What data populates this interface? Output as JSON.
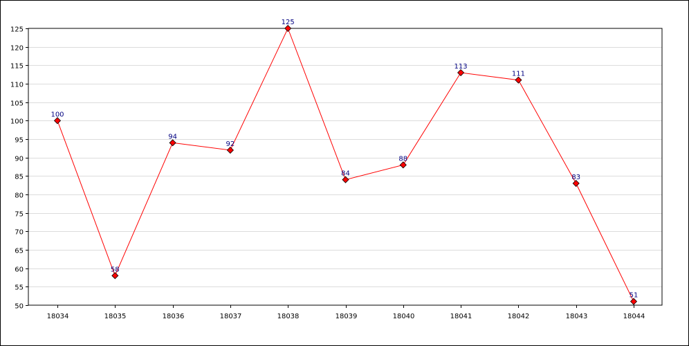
{
  "chart_data": {
    "type": "line",
    "title": "",
    "xlabel": "",
    "ylabel": "",
    "categories": [
      "18034",
      "18035",
      "18036",
      "18037",
      "18038",
      "18039",
      "18040",
      "18041",
      "18042",
      "18043",
      "18044"
    ],
    "series": [
      {
        "values": [
          100,
          58,
          94,
          92,
          125,
          84,
          88,
          113,
          111,
          83,
          51
        ]
      }
    ],
    "ylim": [
      50,
      125
    ],
    "yticks": [
      50,
      55,
      60,
      65,
      70,
      75,
      80,
      85,
      90,
      95,
      100,
      105,
      110,
      115,
      120,
      125
    ],
    "grid": true,
    "data_labels": true,
    "line_color": "#ff0000",
    "marker_color": "#ff0000",
    "label_color": "#000080",
    "grid_color": "#dcdcdc"
  }
}
